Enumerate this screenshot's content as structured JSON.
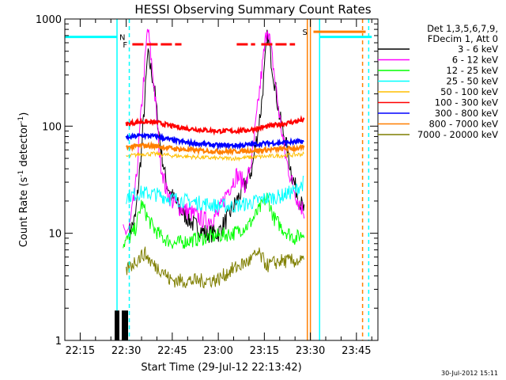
{
  "chart_data": {
    "type": "line",
    "title": "HESSI Observing Summary Count Rates",
    "xlabel": "Start Time (29-Jul-12 22:13:42)",
    "ylabel_parts": [
      "Count Rate (s",
      "-1",
      " detector",
      "-1",
      ")"
    ],
    "y_scale": "log",
    "ylim": [
      1,
      1000
    ],
    "xlim": [
      "22:10",
      "23:52"
    ],
    "y_ticks": [
      "1",
      "10",
      "100",
      "1000"
    ],
    "x_ticks": [
      "22:15",
      "22:30",
      "22:45",
      "23:00",
      "23:15",
      "23:30",
      "23:45"
    ],
    "grid": false,
    "legend_position": "top-right",
    "legend_header": [
      "Det 1,3,5,6,7,9,",
      "FDecim 1, Att 0"
    ],
    "series": [
      {
        "name": "3 - 6 keV",
        "color": "#000000",
        "points": [
          [
            "22:31",
            10
          ],
          [
            "22:33",
            14
          ],
          [
            "22:35",
            60
          ],
          [
            "22:37",
            470
          ],
          [
            "22:39",
            250
          ],
          [
            "22:41",
            70
          ],
          [
            "22:43",
            30
          ],
          [
            "22:45",
            22
          ],
          [
            "22:48",
            16
          ],
          [
            "22:52",
            12
          ],
          [
            "22:56",
            10
          ],
          [
            "23:00",
            10
          ],
          [
            "23:03",
            14
          ],
          [
            "23:06",
            20
          ],
          [
            "23:09",
            30
          ],
          [
            "23:11",
            40
          ],
          [
            "23:14",
            150
          ],
          [
            "23:16",
            720
          ],
          [
            "23:18",
            300
          ],
          [
            "23:20",
            120
          ],
          [
            "23:22",
            70
          ],
          [
            "23:24",
            35
          ],
          [
            "23:26",
            22
          ],
          [
            "23:28",
            16
          ]
        ]
      },
      {
        "name": "6 - 12 keV",
        "color": "#ff00ff",
        "points": [
          [
            "22:29",
            10
          ],
          [
            "22:31",
            11
          ],
          [
            "22:33",
            25
          ],
          [
            "22:35",
            150
          ],
          [
            "22:37",
            850
          ],
          [
            "22:39",
            250
          ],
          [
            "22:41",
            50
          ],
          [
            "22:43",
            25
          ],
          [
            "22:45",
            20
          ],
          [
            "22:48",
            17
          ],
          [
            "22:52",
            15
          ],
          [
            "22:56",
            13
          ],
          [
            "23:00",
            15
          ],
          [
            "23:03",
            25
          ],
          [
            "23:06",
            35
          ],
          [
            "23:09",
            28
          ],
          [
            "23:11",
            50
          ],
          [
            "23:14",
            300
          ],
          [
            "23:16",
            900
          ],
          [
            "23:18",
            350
          ],
          [
            "23:20",
            120
          ],
          [
            "23:22",
            50
          ],
          [
            "23:24",
            30
          ],
          [
            "23:26",
            20
          ],
          [
            "23:28",
            16
          ]
        ]
      },
      {
        "name": "12 - 25 keV",
        "color": "#00ff00",
        "points": [
          [
            "22:29",
            8
          ],
          [
            "22:31",
            9
          ],
          [
            "22:33",
            11
          ],
          [
            "22:35",
            19
          ],
          [
            "22:37",
            14
          ],
          [
            "22:39",
            11
          ],
          [
            "22:42",
            9
          ],
          [
            "22:46",
            8
          ],
          [
            "22:50",
            8.5
          ],
          [
            "22:55",
            9
          ],
          [
            "23:00",
            9.5
          ],
          [
            "23:05",
            10
          ],
          [
            "23:10",
            12
          ],
          [
            "23:13",
            16
          ],
          [
            "23:16",
            22
          ],
          [
            "23:18",
            14
          ],
          [
            "23:21",
            11
          ],
          [
            "23:25",
            9
          ],
          [
            "23:28",
            10
          ]
        ]
      },
      {
        "name": "25 - 50 keV",
        "color": "#00ffff",
        "points": [
          [
            "22:30",
            22
          ],
          [
            "22:35",
            24
          ],
          [
            "22:40",
            23
          ],
          [
            "22:45",
            21
          ],
          [
            "22:50",
            20
          ],
          [
            "22:55",
            19
          ],
          [
            "23:00",
            18
          ],
          [
            "23:05",
            18
          ],
          [
            "23:10",
            19
          ],
          [
            "23:15",
            21
          ],
          [
            "23:20",
            22
          ],
          [
            "23:25",
            25
          ],
          [
            "23:28",
            30
          ]
        ]
      },
      {
        "name": "50 - 100 keV",
        "color": "#ffbf00",
        "points": [
          [
            "22:30",
            52
          ],
          [
            "22:35",
            55
          ],
          [
            "22:40",
            55
          ],
          [
            "22:45",
            53
          ],
          [
            "22:50",
            52
          ],
          [
            "22:55",
            51
          ],
          [
            "23:00",
            50
          ],
          [
            "23:05",
            50
          ],
          [
            "23:10",
            51
          ],
          [
            "23:15",
            52
          ],
          [
            "23:20",
            53
          ],
          [
            "23:25",
            54
          ],
          [
            "23:28",
            55
          ]
        ]
      },
      {
        "name": "100 - 300 keV",
        "color": "#ff0000",
        "points": [
          [
            "22:30",
            105
          ],
          [
            "22:35",
            110
          ],
          [
            "22:40",
            108
          ],
          [
            "22:45",
            100
          ],
          [
            "22:50",
            95
          ],
          [
            "22:55",
            92
          ],
          [
            "23:00",
            90
          ],
          [
            "23:05",
            90
          ],
          [
            "23:10",
            92
          ],
          [
            "23:15",
            98
          ],
          [
            "23:20",
            104
          ],
          [
            "23:25",
            110
          ],
          [
            "23:28",
            115
          ]
        ]
      },
      {
        "name": "300 - 800 keV",
        "color": "#0000ff",
        "points": [
          [
            "22:30",
            78
          ],
          [
            "22:35",
            82
          ],
          [
            "22:40",
            80
          ],
          [
            "22:45",
            74
          ],
          [
            "22:50",
            70
          ],
          [
            "22:55",
            68
          ],
          [
            "23:00",
            66
          ],
          [
            "23:05",
            66
          ],
          [
            "23:10",
            67
          ],
          [
            "23:15",
            69
          ],
          [
            "23:20",
            70
          ],
          [
            "23:25",
            71
          ],
          [
            "23:28",
            72
          ]
        ]
      },
      {
        "name": "800 - 7000 keV",
        "color": "#ff7f00",
        "points": [
          [
            "22:30",
            63
          ],
          [
            "22:35",
            66
          ],
          [
            "22:40",
            65
          ],
          [
            "22:45",
            62
          ],
          [
            "22:50",
            60
          ],
          [
            "22:55",
            59
          ],
          [
            "23:00",
            58
          ],
          [
            "23:05",
            58
          ],
          [
            "23:10",
            59
          ],
          [
            "23:15",
            60
          ],
          [
            "23:20",
            61
          ],
          [
            "23:25",
            62
          ],
          [
            "23:28",
            63
          ]
        ]
      },
      {
        "name": "7000 - 20000 keV",
        "color": "#7f7f00",
        "points": [
          [
            "22:30",
            4.5
          ],
          [
            "22:33",
            5.5
          ],
          [
            "22:36",
            6.5
          ],
          [
            "22:39",
            5
          ],
          [
            "22:42",
            4.5
          ],
          [
            "22:44",
            3.7
          ],
          [
            "22:47",
            3.6
          ],
          [
            "22:50",
            3.6
          ],
          [
            "22:55",
            3.6
          ],
          [
            "23:00",
            3.7
          ],
          [
            "23:04",
            4.5
          ],
          [
            "23:07",
            5
          ],
          [
            "23:10",
            5.5
          ],
          [
            "23:13",
            6.5
          ],
          [
            "23:16",
            5
          ],
          [
            "23:20",
            5.5
          ],
          [
            "23:25",
            5.5
          ],
          [
            "23:28",
            5.5
          ]
        ]
      }
    ],
    "attenuator_state": {
      "label": "F",
      "color": "#ff0000",
      "y": 580,
      "segments": [
        [
          "22:32",
          "22:48"
        ],
        [
          "23:06",
          "23:12"
        ],
        [
          "23:14",
          "23:25"
        ]
      ]
    },
    "saa_state": {
      "label": "S",
      "color": "#ff7f00",
      "y": 760,
      "segments": [
        [
          "23:31",
          "23:48"
        ]
      ]
    },
    "night_state": {
      "label": "N",
      "color": "#00ffff",
      "y": 680,
      "segments": [
        [
          "22:10",
          "22:27"
        ],
        [
          "23:33",
          "23:50"
        ]
      ]
    },
    "vertical_markers": [
      {
        "time": "22:27",
        "color": "#00ffff",
        "style": "solid"
      },
      {
        "time": "22:31",
        "color": "#00ffff",
        "style": "dashed"
      },
      {
        "time": "23:29",
        "color": "#ff7f00",
        "style": "solid"
      },
      {
        "time": "23:30",
        "color": "#ff7f00",
        "style": "solid"
      },
      {
        "time": "23:33",
        "color": "#00ffff",
        "style": "solid"
      },
      {
        "time": "23:47",
        "color": "#ff7f00",
        "style": "dashed"
      },
      {
        "time": "23:49",
        "color": "#00ffff",
        "style": "dashed"
      }
    ],
    "data_start": "22:27",
    "data_end": "23:29"
  },
  "footer": {
    "timestamp": "30-Jul-2012 15:11"
  }
}
